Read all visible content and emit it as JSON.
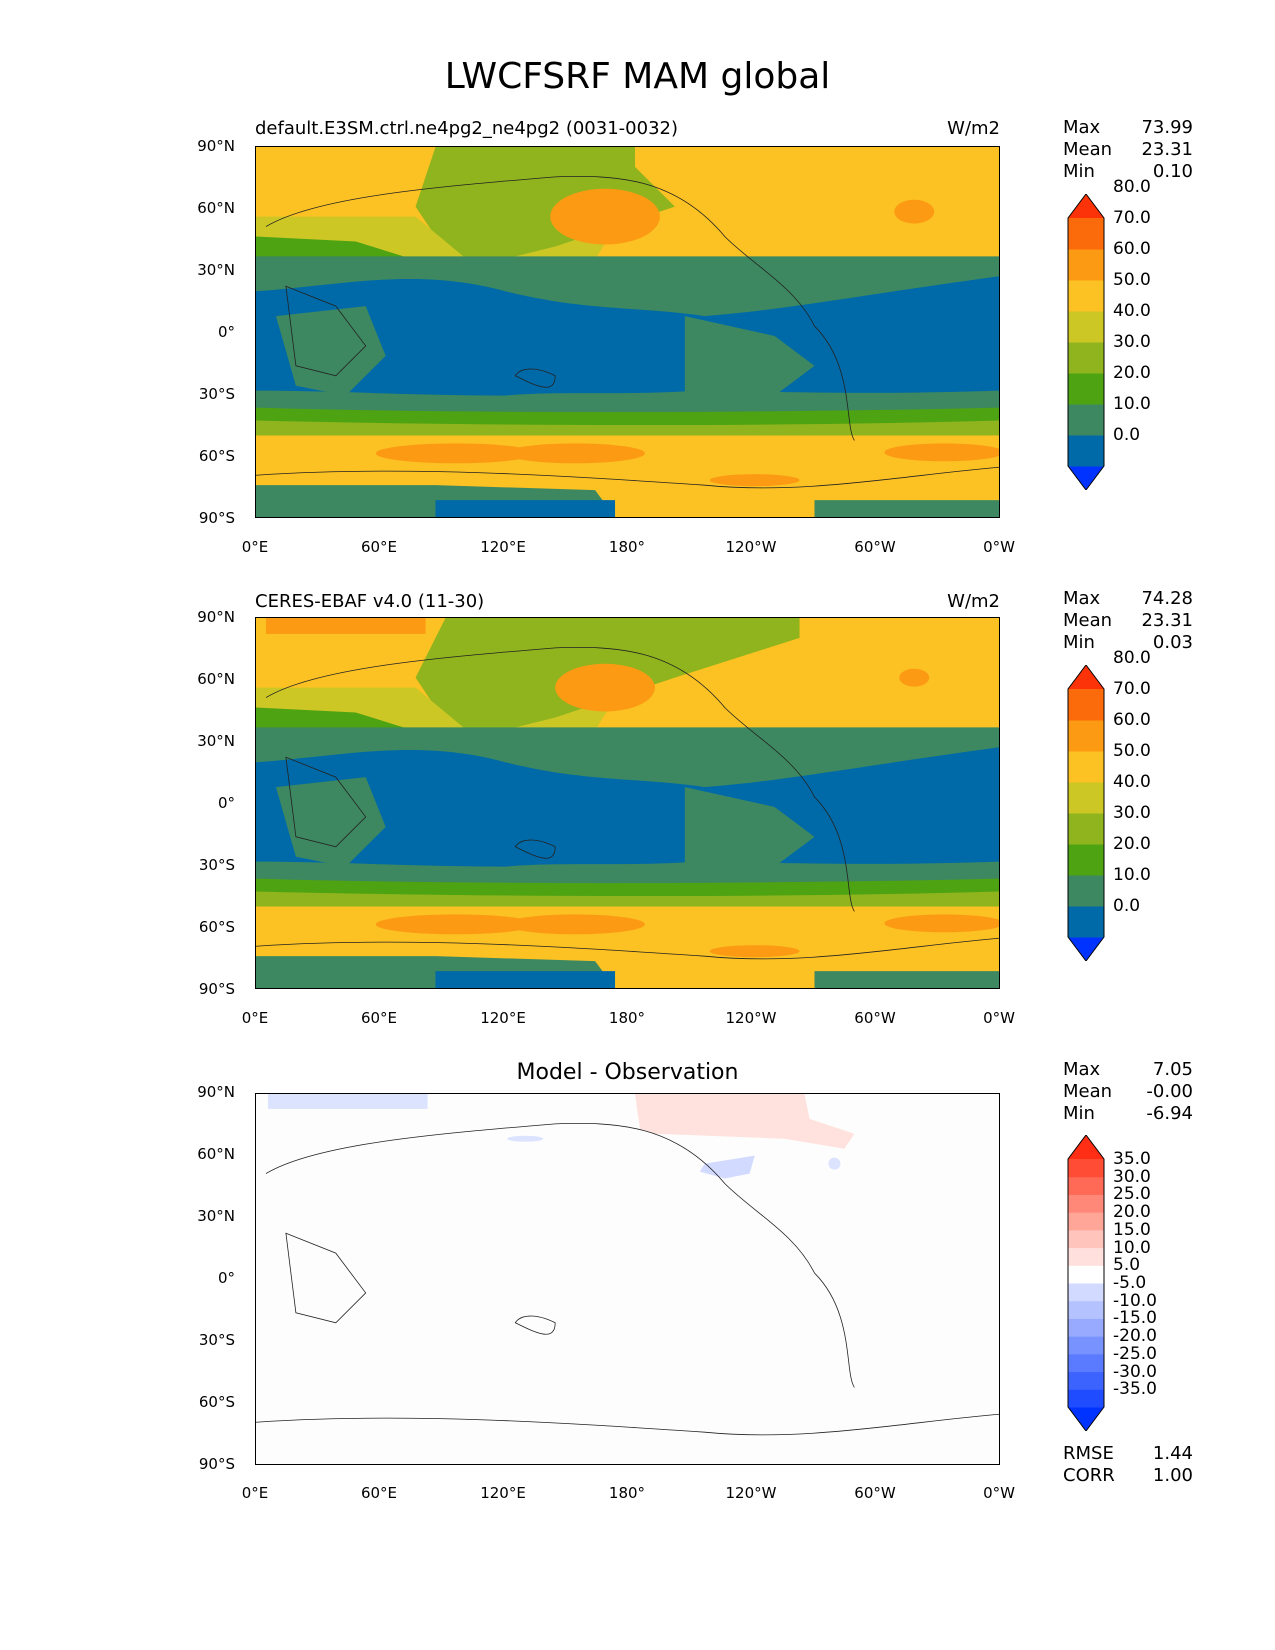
{
  "title": "LWCFSRF MAM global",
  "yticks": [
    "90°N",
    "60°N",
    "30°N",
    "0°",
    "30°S",
    "60°S",
    "90°S"
  ],
  "xticks": [
    "0°E",
    "60°E",
    "120°E",
    "180°",
    "120°W",
    "60°W",
    "0°W"
  ],
  "panels": [
    {
      "title_left": "default.E3SM.ctrl.ne4pg2_ne4pg2 (0031-0032)",
      "title_right": "W/m2",
      "stats": [
        [
          "Max",
          "73.99"
        ],
        [
          "Mean",
          "23.31"
        ],
        [
          "Min",
          "0.10"
        ]
      ],
      "colorbar": {
        "colors": [
          "#0033ff",
          "#006aa8",
          "#3d8860",
          "#4ea312",
          "#8fb41d",
          "#cdc726",
          "#fcc122",
          "#fc9a14",
          "#fc6b0b",
          "#fc3308"
        ],
        "labels": [
          "0.0",
          "10.0",
          "20.0",
          "30.0",
          "40.0",
          "50.0",
          "60.0",
          "70.0",
          "80.0"
        ]
      }
    },
    {
      "title_left": "CERES-EBAF v4.0 (11-30)",
      "title_right": "W/m2",
      "stats": [
        [
          "Max",
          "74.28"
        ],
        [
          "Mean",
          "23.31"
        ],
        [
          "Min",
          "0.03"
        ]
      ],
      "colorbar": {
        "colors": [
          "#0033ff",
          "#006aa8",
          "#3d8860",
          "#4ea312",
          "#8fb41d",
          "#cdc726",
          "#fcc122",
          "#fc9a14",
          "#fc6b0b",
          "#fc3308"
        ],
        "labels": [
          "0.0",
          "10.0",
          "20.0",
          "30.0",
          "40.0",
          "50.0",
          "60.0",
          "70.0",
          "80.0"
        ]
      }
    },
    {
      "title_center": "Model - Observation",
      "stats": [
        [
          "Max",
          "7.05"
        ],
        [
          "Mean",
          "-0.00"
        ],
        [
          "Min",
          "-6.94"
        ]
      ],
      "colorbar": {
        "colors": [
          "#0033ff",
          "#1f4cff",
          "#3d63ff",
          "#5a7bff",
          "#7892ff",
          "#97aaff",
          "#b4c2ff",
          "#d2daff",
          "#ffffff",
          "#ffe0dc",
          "#ffc4bb",
          "#ffa699",
          "#ff8878",
          "#ff6a56",
          "#ff4c35",
          "#ff2e14"
        ],
        "labels": [
          "-35.0",
          "-30.0",
          "-25.0",
          "-20.0",
          "-15.0",
          "-10.0",
          "-5.0",
          "5.0",
          "10.0",
          "15.0",
          "20.0",
          "25.0",
          "30.0",
          "35.0"
        ]
      },
      "footer": [
        [
          "RMSE",
          "1.44"
        ],
        [
          "CORR",
          "1.00"
        ]
      ]
    }
  ]
}
